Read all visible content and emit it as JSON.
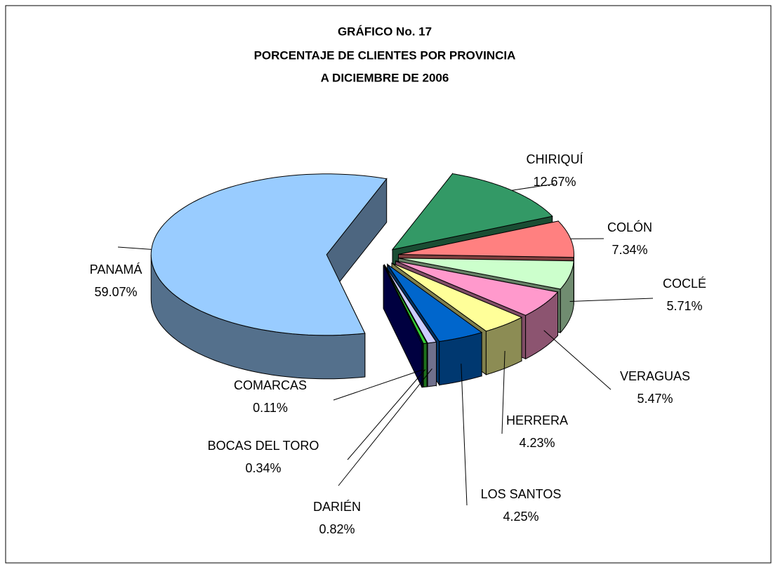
{
  "chart_data": {
    "type": "pie",
    "title": [
      "GRÁFICO No. 17",
      "PORCENTAJE DE CLIENTES POR PROVINCIA",
      "A DICIEMBRE DE 2006"
    ],
    "categories": [
      "PANAMÁ",
      "CHIRIQUÍ",
      "COLÓN",
      "COCLÉ",
      "VERAGUAS",
      "HERRERA",
      "LOS SANTOS",
      "DARIÉN",
      "BOCAS DEL TORO",
      "COMARCAS"
    ],
    "values": [
      59.07,
      12.67,
      7.34,
      5.71,
      5.47,
      4.23,
      4.25,
      0.82,
      0.34,
      0.11
    ],
    "value_labels": [
      "59.07%",
      "12.67%",
      "7.34%",
      "5.71%",
      "5.47%",
      "4.23%",
      "4.25%",
      "0.82%",
      "0.34%",
      "0.11%"
    ],
    "colors": [
      "#99ccff",
      "#339966",
      "#ff8080",
      "#ccffcc",
      "#ff99cc",
      "#ffff99",
      "#0066cc",
      "#ccccff",
      "#33cc33",
      "#000080"
    ]
  }
}
